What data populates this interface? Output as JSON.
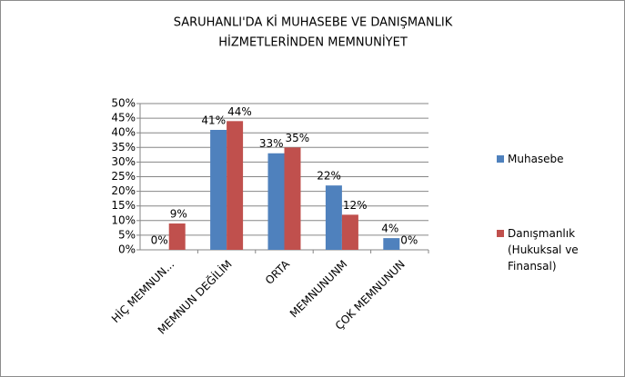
{
  "chart_data": {
    "type": "bar",
    "title": [
      "SARUHANLI'DA Kİ MUHASEBE VE DANIŞMANLIK",
      "HİZMETLERİNDEN MEMNUNİYET"
    ],
    "categories": [
      "HİÇ MEMNUN...",
      "MEMNUN DEĞİLİM",
      "ORTA",
      "MEMNUNUNM",
      "ÇOK MEMNUNUN"
    ],
    "series": [
      {
        "name": "Muhasebe",
        "color": "#4f81bd",
        "values": [
          0,
          41,
          33,
          22,
          4
        ],
        "value_labels": [
          "0%",
          "41%",
          "33%",
          "22%",
          "4%"
        ]
      },
      {
        "name": "Danışmanlık (Hukuksal ve Finansal)",
        "color": "#c0504d",
        "values": [
          9,
          44,
          35,
          12,
          0
        ],
        "value_labels": [
          "9%",
          "44%",
          "35%",
          "12%",
          "0%"
        ]
      }
    ],
    "ylim": [
      0,
      50
    ],
    "yticks": [
      {
        "value": 0,
        "label": "0%"
      },
      {
        "value": 5,
        "label": "5%"
      },
      {
        "value": 10,
        "label": "10%"
      },
      {
        "value": 15,
        "label": "15%"
      },
      {
        "value": 20,
        "label": "20%"
      },
      {
        "value": 25,
        "label": "25%"
      },
      {
        "value": 30,
        "label": "30%"
      },
      {
        "value": 35,
        "label": "35%"
      },
      {
        "value": 40,
        "label": "40%"
      },
      {
        "value": 45,
        "label": "45%"
      },
      {
        "value": 50,
        "label": "50%"
      }
    ],
    "grid": true,
    "legend": "right"
  }
}
